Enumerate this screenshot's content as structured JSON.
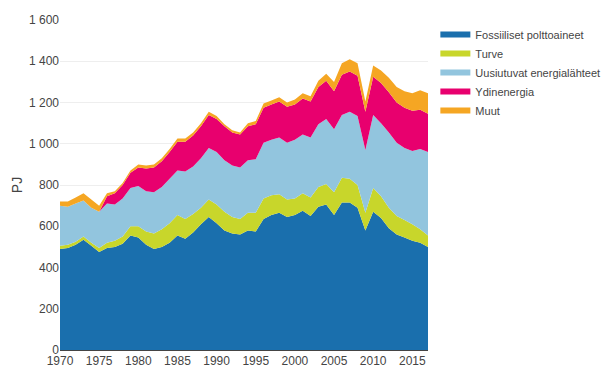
{
  "chart_data": {
    "type": "area",
    "stacked": true,
    "ylabel": "PJ",
    "x": [
      1970,
      1971,
      1972,
      1973,
      1974,
      1975,
      1976,
      1977,
      1978,
      1979,
      1980,
      1981,
      1982,
      1983,
      1984,
      1985,
      1986,
      1987,
      1988,
      1989,
      1990,
      1991,
      1992,
      1993,
      1994,
      1995,
      1996,
      1997,
      1998,
      1999,
      2000,
      2001,
      2002,
      2003,
      2004,
      2005,
      2006,
      2007,
      2008,
      2009,
      2010,
      2011,
      2012,
      2013,
      2014,
      2015,
      2016,
      2017
    ],
    "series": [
      {
        "name": "Fossiiliset polttoaineet",
        "color": "#1a6fad",
        "values": [
          490,
          495,
          510,
          535,
          505,
          475,
          495,
          500,
          515,
          555,
          545,
          510,
          490,
          500,
          520,
          555,
          540,
          570,
          610,
          645,
          615,
          580,
          565,
          560,
          580,
          575,
          635,
          655,
          665,
          645,
          655,
          675,
          650,
          695,
          705,
          655,
          715,
          715,
          690,
          580,
          670,
          640,
          590,
          560,
          545,
          530,
          520,
          500
        ]
      },
      {
        "name": "Turve",
        "color": "#c8d62b",
        "values": [
          15,
          15,
          15,
          15,
          15,
          20,
          25,
          30,
          35,
          45,
          55,
          65,
          75,
          85,
          95,
          100,
          95,
          90,
          80,
          85,
          90,
          90,
          80,
          75,
          85,
          90,
          100,
          95,
          90,
          85,
          80,
          85,
          90,
          95,
          100,
          110,
          120,
          115,
          110,
          85,
          115,
          105,
          100,
          90,
          85,
          80,
          65,
          55
        ]
      },
      {
        "name": "Uusiutuvat energialähteet",
        "color": "#92c5de",
        "values": [
          195,
          185,
          185,
          175,
          170,
          175,
          190,
          175,
          185,
          185,
          195,
          195,
          200,
          205,
          215,
          215,
          230,
          230,
          240,
          250,
          255,
          250,
          250,
          250,
          255,
          260,
          270,
          270,
          275,
          275,
          285,
          285,
          290,
          305,
          315,
          305,
          305,
          325,
          335,
          305,
          355,
          355,
          365,
          355,
          350,
          355,
          390,
          405
        ]
      },
      {
        "name": "Ydinenergia",
        "color": "#e8006e",
        "values": [
          0,
          0,
          0,
          0,
          0,
          0,
          35,
          55,
          65,
          75,
          90,
          110,
          120,
          125,
          130,
          140,
          145,
          150,
          155,
          160,
          160,
          165,
          160,
          160,
          165,
          170,
          170,
          170,
          175,
          175,
          170,
          175,
          175,
          180,
          185,
          185,
          195,
          195,
          195,
          185,
          185,
          195,
          195,
          195,
          195,
          195,
          190,
          185
        ]
      },
      {
        "name": "Muut",
        "color": "#f5a623",
        "values": [
          20,
          25,
          30,
          35,
          40,
          30,
          15,
          10,
          10,
          10,
          15,
          15,
          15,
          15,
          15,
          15,
          15,
          15,
          15,
          15,
          15,
          10,
          10,
          10,
          15,
          15,
          20,
          20,
          20,
          20,
          25,
          25,
          25,
          30,
          35,
          45,
          55,
          60,
          60,
          50,
          55,
          60,
          70,
          75,
          80,
          85,
          95,
          100
        ]
      }
    ],
    "xlim": [
      1970,
      2017
    ],
    "xticks": [
      1970,
      1975,
      1980,
      1985,
      1990,
      1995,
      2000,
      2005,
      2010,
      2015
    ],
    "ylim": [
      0,
      1600
    ],
    "yticks": [
      0,
      200,
      400,
      600,
      800,
      {
        "value": 1000,
        "label": "1 000"
      },
      {
        "value": 1200,
        "label": "1 200"
      },
      {
        "value": 1400,
        "label": "1 400"
      },
      {
        "value": 1600,
        "label": "1 600"
      }
    ],
    "grid": true,
    "legend": "right"
  }
}
